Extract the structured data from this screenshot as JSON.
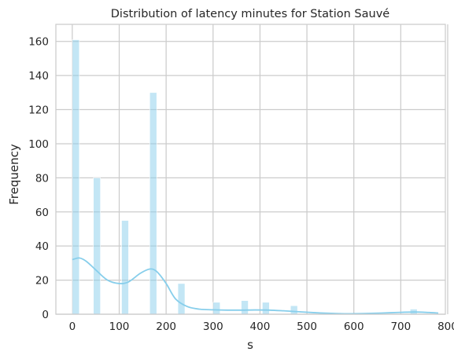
{
  "chart_data": {
    "type": "histogram",
    "title": "Distribution of latency minutes for Station Sauvé",
    "xlabel": "s",
    "ylabel": "Frequency",
    "xlim": [
      -35,
      795
    ],
    "ylim": [
      0,
      170
    ],
    "xticks": [
      0,
      100,
      200,
      300,
      400,
      500,
      600,
      700,
      800
    ],
    "yticks": [
      0,
      20,
      40,
      60,
      80,
      100,
      120,
      140,
      160
    ],
    "grid": true,
    "bar_color": "#87ceeb",
    "bar_opacity": 0.5,
    "line_color": "#87ceeb",
    "bins": [
      {
        "x0": 0,
        "x1": 15,
        "count": 161
      },
      {
        "x0": 45,
        "x1": 60,
        "count": 80
      },
      {
        "x0": 105,
        "x1": 120,
        "count": 55
      },
      {
        "x0": 165,
        "x1": 180,
        "count": 130
      },
      {
        "x0": 225,
        "x1": 240,
        "count": 18
      },
      {
        "x0": 300,
        "x1": 315,
        "count": 7
      },
      {
        "x0": 360,
        "x1": 375,
        "count": 8
      },
      {
        "x0": 405,
        "x1": 420,
        "count": 7
      },
      {
        "x0": 465,
        "x1": 480,
        "count": 5
      },
      {
        "x0": 720,
        "x1": 735,
        "count": 3
      }
    ],
    "kde": {
      "x": [
        0,
        15,
        30,
        50,
        75,
        100,
        120,
        145,
        165,
        180,
        200,
        220,
        245,
        270,
        300,
        330,
        360,
        390,
        420,
        450,
        480,
        510,
        540,
        580,
        620,
        660,
        700,
        730,
        760,
        780
      ],
      "y": [
        32,
        33,
        31,
        26,
        20,
        18,
        19,
        24,
        26.5,
        25,
        18,
        9,
        4.5,
        3,
        2.6,
        2.4,
        2.4,
        2.5,
        2.4,
        2,
        1.5,
        1,
        0.6,
        0.3,
        0.4,
        0.7,
        1.1,
        1.3,
        1,
        0.7
      ]
    }
  }
}
